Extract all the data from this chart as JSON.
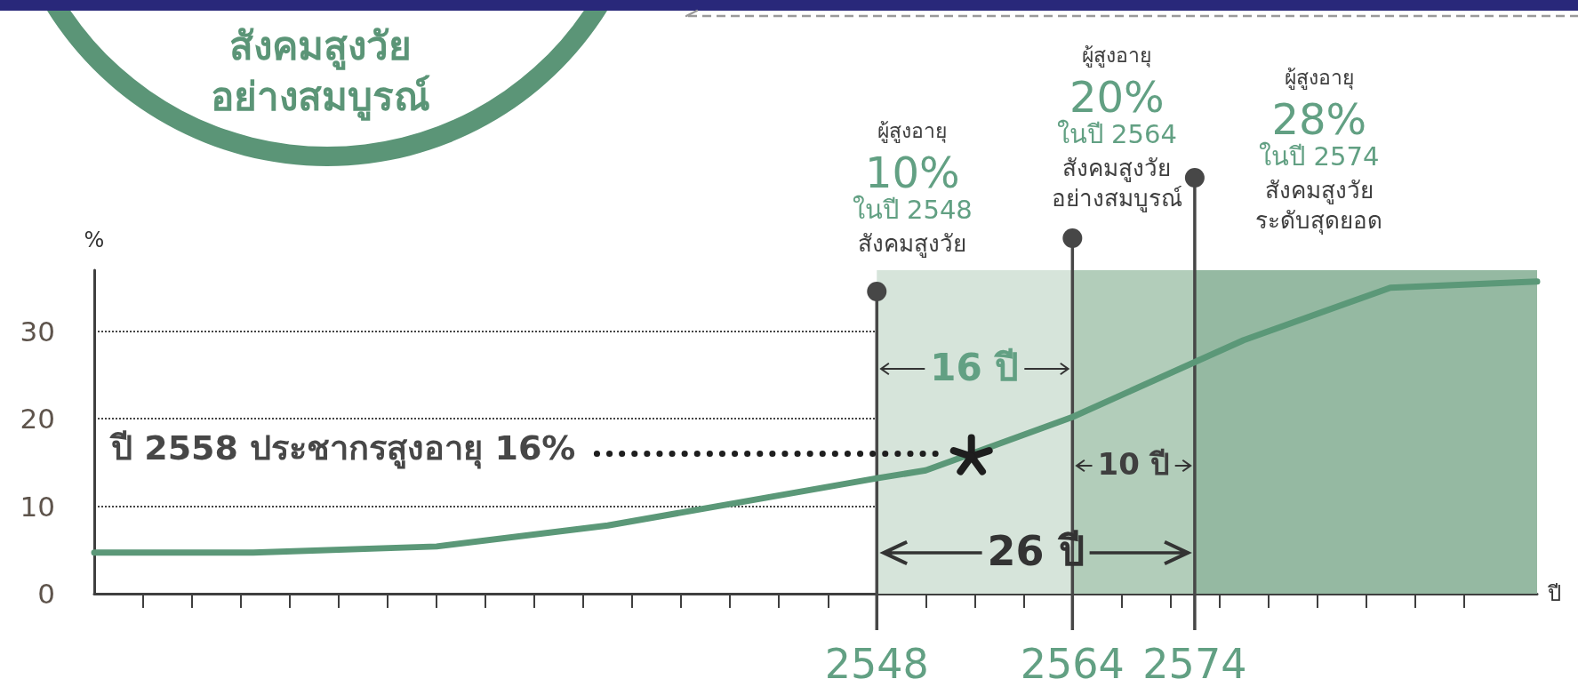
{
  "chart_data": {
    "type": "line",
    "title": "สังคมสูงวัย\nอย่างสมบูรณ์",
    "xlabel": "ปี",
    "ylabel": "%",
    "x": [
      2484,
      2497,
      2512,
      2526,
      2548,
      2552,
      2564,
      2578,
      2590,
      2602
    ],
    "values": [
      4.7,
      4.7,
      5.4,
      7.8,
      13.2,
      14.1,
      20.2,
      29.0,
      35.0,
      35.7
    ],
    "color": "#5b9878",
    "xlim": [
      2484,
      2602
    ],
    "xticks": [
      {
        "value": 2488,
        "label": null
      },
      {
        "value": 2492,
        "label": null
      },
      {
        "value": 2496,
        "label": null
      },
      {
        "value": 2500,
        "label": null
      },
      {
        "value": 2504,
        "label": null
      },
      {
        "value": 2508,
        "label": null
      },
      {
        "value": 2512,
        "label": null
      },
      {
        "value": 2516,
        "label": null
      },
      {
        "value": 2520,
        "label": null
      },
      {
        "value": 2524,
        "label": null
      },
      {
        "value": 2528,
        "label": null
      },
      {
        "value": 2532,
        "label": null
      },
      {
        "value": 2536,
        "label": null
      },
      {
        "value": 2540,
        "label": null
      },
      {
        "value": 2544,
        "label": null
      },
      2548,
      {
        "value": 2552,
        "label": null
      },
      {
        "value": 2556,
        "label": null
      },
      {
        "value": 2560,
        "label": null
      },
      2564,
      {
        "value": 2568,
        "label": null
      },
      {
        "value": 2572,
        "label": null
      },
      2574,
      {
        "value": 2576,
        "label": null
      },
      {
        "value": 2580,
        "label": null
      },
      {
        "value": 2584,
        "label": null
      },
      {
        "value": 2588,
        "label": null
      },
      {
        "value": 2592,
        "label": null
      },
      {
        "value": 2596,
        "label": null
      }
    ],
    "ylim": [
      0,
      37
    ],
    "yticks": [
      0,
      10,
      20,
      30
    ],
    "grid": "y",
    "marker": "none",
    "line_style": "solid",
    "ref_lines": [
      {
        "axis": "x",
        "value": 2548,
        "label": "ผู้สูงอายุ\n10%\nในปี 2548\nสังคมสูงวัย",
        "color": "#474747"
      },
      {
        "axis": "x",
        "value": 2564,
        "label": "ผู้สูงอายุ\n20%\nในปี 2564\nสังคมสูงวัย\nอย่างสมบูรณ์",
        "color": "#474747"
      },
      {
        "axis": "x",
        "value": 2574,
        "label": "ผู้สูงอายุ\n28%\nในปี 2574\nสังคมสูงวัย\nระดับสุดยอด",
        "color": "#474747"
      },
      {
        "axis": "y",
        "value": 16,
        "label": "ปี 2558 ประชากรสูงอายุ 16%",
        "color": "#1e1e1e",
        "line_style": "dotted"
      }
    ],
    "bands": [
      {
        "axis": "x",
        "from": 2548,
        "to": 2564,
        "color": "#d6e4da"
      },
      {
        "axis": "x",
        "from": 2564,
        "to": 2574,
        "color": "#b2cdba"
      },
      {
        "axis": "x",
        "from": 2574,
        "to": 2602,
        "color": "#95b9a2"
      }
    ],
    "annotations": [
      "16 ปี",
      "10 ปี",
      "26 ปี"
    ]
  }
}
